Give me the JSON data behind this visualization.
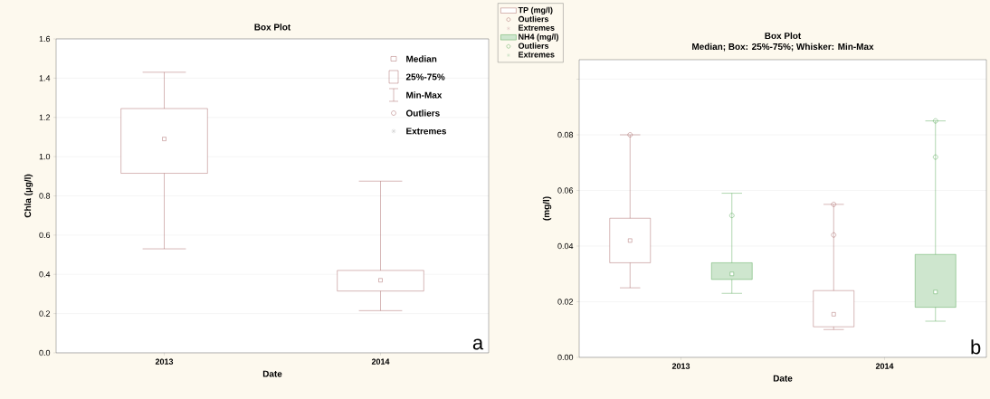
{
  "chart_data": [
    {
      "type": "box",
      "title": "Box Plot",
      "xlabel": "Date",
      "ylabel": "Chla  (µg/l)",
      "categories": [
        "2013",
        "2014"
      ],
      "series": [
        {
          "color": "#9b4b4b",
          "boxes": [
            {
              "low": 0.53,
              "q1": 0.915,
              "median": 1.09,
              "q3": 1.245,
              "high": 1.43
            },
            {
              "low": 0.215,
              "q1": 0.315,
              "median": 0.37,
              "q3": 0.42,
              "high": 0.875
            }
          ]
        }
      ],
      "ylim": [
        0,
        1.6
      ],
      "yticks": [
        {
          "value": 0,
          "label": "0.0"
        },
        0.2,
        0.4,
        0.6,
        0.8,
        {
          "value": 1,
          "label": "1.0"
        },
        1.2,
        1.4,
        1.6
      ],
      "grid": "y",
      "annotations": [
        "Median",
        "25%-75%",
        "Min-Max",
        "Outliers",
        "Extremes",
        "a"
      ]
    },
    {
      "type": "box",
      "title": "Box Plot",
      "subtitle": "Median; Box: 25%-75%; Whisker: Min-Max",
      "xlabel": "Date",
      "ylabel": "(mg/l)",
      "categories": [
        "2013",
        "2014"
      ],
      "series": [
        {
          "name": "TP (mg/l)",
          "color": "#9b4b4b",
          "boxes": [
            {
              "low": 0.025,
              "q1": 0.034,
              "median": 0.042,
              "q3": 0.05,
              "high": 0.08,
              "outliers": [
                0.08
              ]
            },
            {
              "low": 0.01,
              "q1": 0.011,
              "median": 0.0155,
              "q3": 0.024,
              "high": 0.055,
              "outliers": [
                0.044,
                0.055
              ]
            }
          ]
        },
        {
          "name": "NH4  (mg/l)",
          "color": "#3a9a3a",
          "boxes": [
            {
              "low": 0.023,
              "q1": 0.028,
              "median": 0.03,
              "q3": 0.034,
              "high": 0.059,
              "outliers": [
                0.051
              ]
            },
            {
              "low": 0.013,
              "q1": 0.018,
              "median": 0.0235,
              "q3": 0.037,
              "high": 0.085,
              "outliers": [
                0.072,
                0.085
              ]
            }
          ]
        }
      ],
      "ylim": [
        0,
        0.107
      ],
      "yticks": [
        {
          "value": 0,
          "label": "0.00"
        },
        0.02,
        0.04,
        0.06,
        0.08,
        {
          "value": 0.1,
          "label": null
        }
      ],
      "grid": "y",
      "legend": "top left",
      "annotations": [
        "Outliers",
        "Extremes",
        "Outliers",
        "Extremes",
        "b"
      ]
    }
  ]
}
